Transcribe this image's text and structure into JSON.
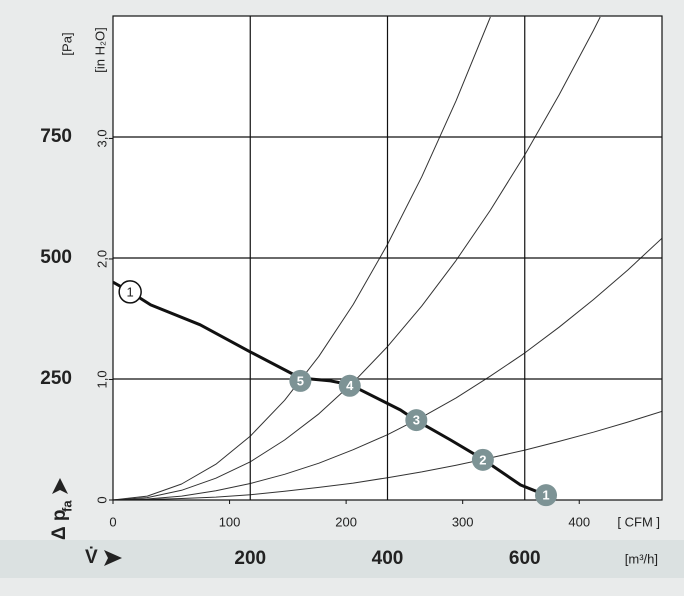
{
  "chart_data": {
    "type": "line",
    "ylabel": "[Pa]",
    "y2label": "[in H₂O]",
    "pressure_symbol": "Δ p",
    "pressure_subscript": "fa",
    "flow_symbol": "V̇",
    "xlabel": "[m³/h]",
    "x2label": "[ CFM ]",
    "xlim": [
      0,
      800
    ],
    "xticks": [
      200,
      400,
      600
    ],
    "x2lim": [
      0,
      471
    ],
    "x2ticks": [
      0,
      100,
      200,
      300,
      400
    ],
    "ylim": [
      0,
      1000
    ],
    "yticks": [
      250,
      500,
      750
    ],
    "y2lim": [
      0,
      4.016
    ],
    "y2ticks": [
      0,
      {
        "value": 1,
        "label": "1,0"
      },
      {
        "value": 2,
        "label": "2,0"
      },
      {
        "value": 3,
        "label": "3,0"
      }
    ],
    "grid": true,
    "series": [
      {
        "color": "#111111",
        "x": [
          0,
          25,
          55,
          127,
          200,
          273,
          317,
          346,
          419,
          441,
          492,
          536,
          594,
          631
        ],
        "values": [
          450,
          430,
          403,
          362,
          306,
          252,
          246,
          238,
          186,
          165,
          124,
          87,
          31,
          10
        ]
      },
      {
        "color": "#333333",
        "x": [
          0,
          50,
          100,
          150,
          200,
          250,
          300,
          350,
          400,
          450,
          500,
          550
        ],
        "values": [
          0,
          8,
          33,
          74,
          132,
          206,
          297,
          404,
          528,
          668,
          825,
          998
        ]
      },
      {
        "color": "#333333",
        "x": [
          0,
          50,
          100,
          150,
          200,
          250,
          300,
          350,
          400,
          450,
          500,
          550,
          600,
          650,
          700,
          710
        ],
        "values": [
          0,
          5,
          20,
          45,
          79,
          124,
          178,
          243,
          317,
          401,
          495,
          599,
          713,
          837,
          970,
          998
        ]
      },
      {
        "color": "#333333",
        "x": [
          0,
          50,
          100,
          150,
          200,
          250,
          300,
          350,
          400,
          450,
          500,
          550,
          600,
          650,
          700,
          750,
          800
        ],
        "values": [
          0,
          2,
          8,
          19,
          34,
          53,
          76,
          104,
          135,
          171,
          211,
          256,
          304,
          357,
          414,
          475,
          541
        ]
      },
      {
        "color": "#333333",
        "x": [
          0,
          50,
          100,
          150,
          200,
          250,
          300,
          350,
          400,
          450,
          500,
          550,
          600,
          650,
          700,
          750,
          800
        ],
        "values": [
          0,
          1,
          3,
          6,
          11,
          18,
          26,
          35,
          46,
          58,
          72,
          87,
          103,
          121,
          140,
          161,
          183
        ]
      }
    ],
    "points": {
      "color": "#7d9395",
      "x": [
        631,
        539,
        442,
        345,
        273
      ],
      "values": [
        10,
        83,
        165,
        236,
        246
      ],
      "labels": [
        "1",
        "2",
        "3",
        "4",
        "5"
      ]
    },
    "start_point": {
      "x": 25,
      "value": 430,
      "label": "1"
    }
  }
}
